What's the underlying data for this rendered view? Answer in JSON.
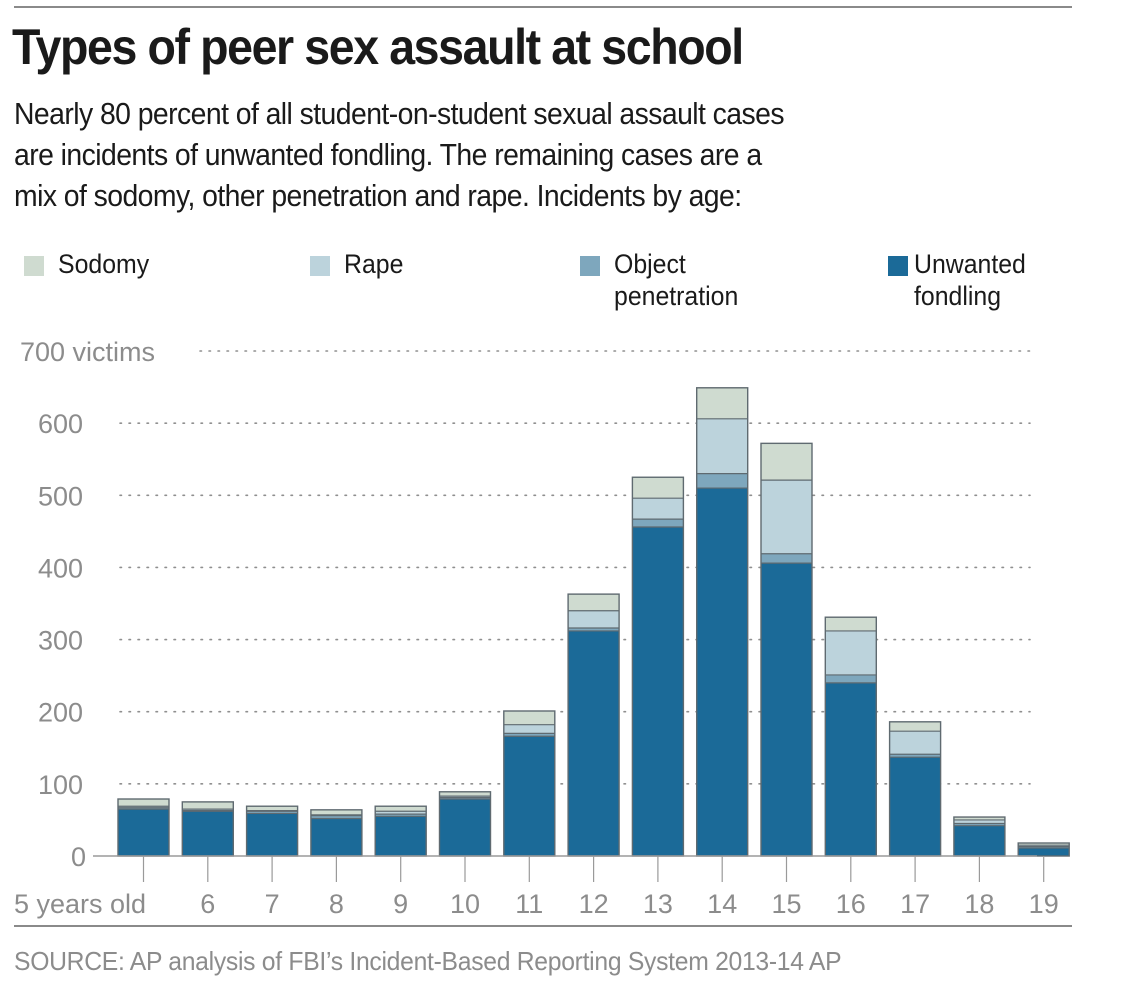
{
  "header": {
    "title": "Types of peer sex assault at school",
    "subtitle_lines": [
      "Nearly 80 percent of all student-on-student sexual assault cases",
      "are incidents of unwanted fondling. The remaining cases are a",
      "mix of sodomy, other penetration and rape. Incidents by age:"
    ]
  },
  "legend": [
    {
      "key": "sodomy",
      "lines": [
        "Sodomy"
      ],
      "color": "#cfdbd0"
    },
    {
      "key": "rape",
      "lines": [
        "Rape"
      ],
      "color": "#bcd3dc"
    },
    {
      "key": "object_penetration",
      "lines": [
        "Object",
        "penetration"
      ],
      "color": "#7ea7bd"
    },
    {
      "key": "unwanted_fondling",
      "lines": [
        "Unwanted",
        "fondling"
      ],
      "color": "#1b6a98"
    }
  ],
  "source": "SOURCE: AP analysis of FBI’s Incident-Based Reporting System 2013-14 AP",
  "chart_data": {
    "type": "bar",
    "stacked": true,
    "title": "Types of peer sex assault at school",
    "xlabel": "",
    "ylabel": "victims",
    "ylim": [
      0,
      700
    ],
    "yticks": [
      0,
      100,
      200,
      300,
      400,
      500,
      600,
      700
    ],
    "ytick_labels": [
      "0",
      "100",
      "200",
      "300",
      "400",
      "500",
      "600",
      "700 victims"
    ],
    "grid": true,
    "legend_position": "top",
    "categories": [
      "5 years old",
      "6",
      "7",
      "8",
      "9",
      "10",
      "11",
      "12",
      "13",
      "14",
      "15",
      "16",
      "17",
      "18",
      "19"
    ],
    "series": [
      {
        "name": "Unwanted fondling",
        "color": "#1b6a98",
        "values": [
          65,
          62,
          59,
          52,
          55,
          79,
          166,
          312,
          456,
          510,
          406,
          240,
          137,
          42,
          11
        ]
      },
      {
        "name": "Object penetration",
        "color": "#7ea7bd",
        "values": [
          2,
          1,
          3,
          4,
          3,
          2,
          4,
          4,
          11,
          20,
          13,
          11,
          4,
          3,
          2
        ]
      },
      {
        "name": "Rape",
        "color": "#bcd3dc",
        "values": [
          2,
          2,
          1,
          1,
          4,
          2,
          12,
          24,
          29,
          76,
          102,
          61,
          32,
          5,
          2
        ]
      },
      {
        "name": "Sodomy",
        "color": "#cfdbd0",
        "values": [
          10,
          10,
          6,
          7,
          7,
          6,
          19,
          23,
          29,
          43,
          51,
          19,
          13,
          4,
          3
        ]
      }
    ]
  }
}
